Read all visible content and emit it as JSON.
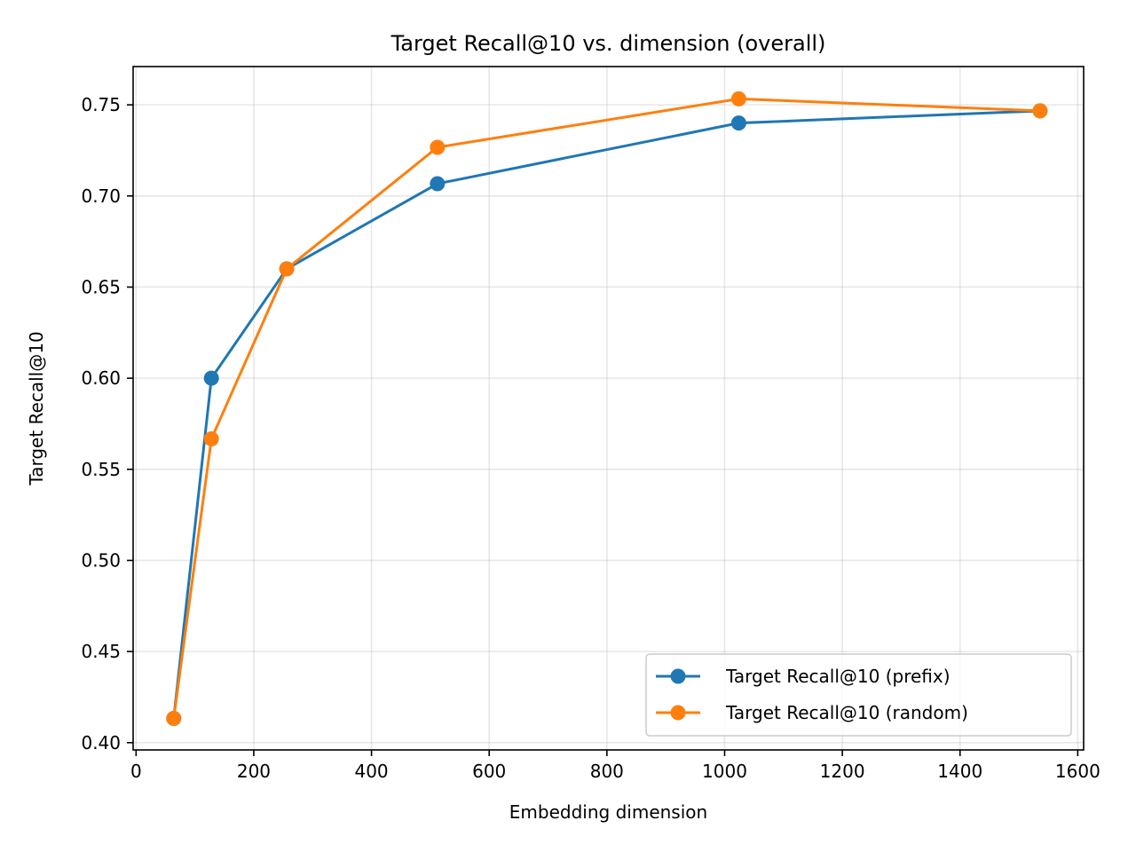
{
  "chart_data": {
    "type": "line",
    "title": "Target Recall@10 vs. dimension (overall)",
    "xlabel": "Embedding dimension",
    "ylabel": "Target Recall@10",
    "xlim": [
      -5,
      1610
    ],
    "ylim": [
      0.396,
      0.771
    ],
    "xticks": [
      0,
      200,
      400,
      600,
      800,
      1000,
      1200,
      1400,
      1600
    ],
    "xtick_labels": [
      "0",
      "200",
      "400",
      "600",
      "800",
      "1000",
      "1200",
      "1400",
      "1600"
    ],
    "yticks": [
      0.4,
      0.45,
      0.5,
      0.55,
      0.6,
      0.65,
      0.7,
      0.75
    ],
    "ytick_labels": [
      "0.40",
      "0.45",
      "0.50",
      "0.55",
      "0.60",
      "0.65",
      "0.70",
      "0.75"
    ],
    "grid": true,
    "legend_position": "lower-right",
    "x": [
      64,
      128,
      256,
      512,
      1024,
      1536
    ],
    "series": [
      {
        "name": "Target Recall@10 (prefix)",
        "color": "#1f77b4",
        "values": [
          0.4133,
          0.6,
          0.66,
          0.7067,
          0.74,
          0.7467
        ]
      },
      {
        "name": "Target Recall@10 (random)",
        "color": "#ff7f0e",
        "values": [
          0.4133,
          0.5667,
          0.66,
          0.7267,
          0.7533,
          0.7467
        ]
      }
    ]
  }
}
